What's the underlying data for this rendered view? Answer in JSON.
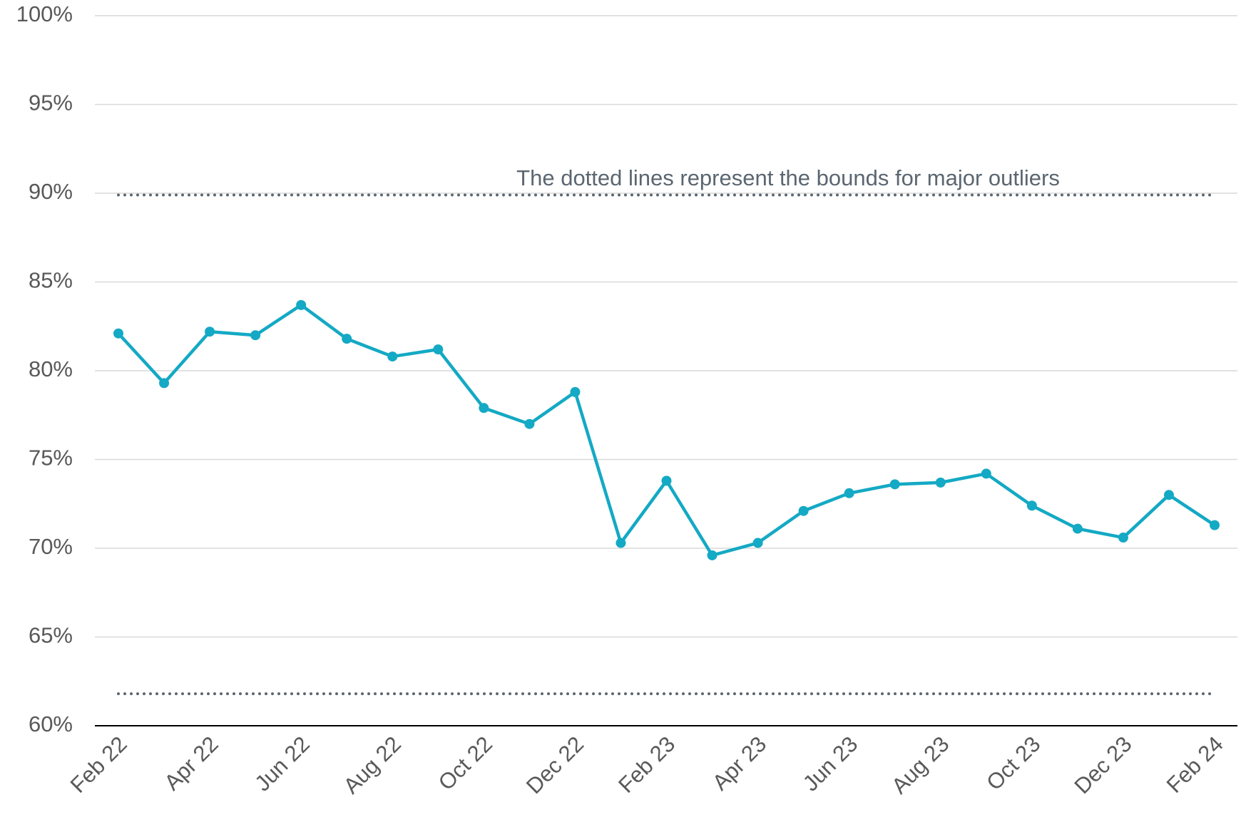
{
  "chart_data": {
    "type": "line",
    "annotation": "The dotted lines represent the bounds for major outliers",
    "categories": [
      "Feb 22",
      null,
      "Apr 22",
      null,
      "Jun 22",
      null,
      "Aug 22",
      null,
      "Oct 22",
      null,
      "Dec 22",
      null,
      "Feb 23",
      null,
      "Apr 23",
      null,
      "Jun 23",
      null,
      "Aug 23",
      null,
      "Oct 23",
      null,
      "Dec 23",
      null,
      "Feb 24"
    ],
    "series": [
      {
        "color": "#14a9c4",
        "values": [
          82.1,
          79.3,
          82.2,
          82.0,
          83.7,
          81.8,
          80.8,
          81.2,
          77.9,
          77.0,
          78.8,
          70.3,
          73.8,
          69.6,
          70.3,
          72.1,
          73.1,
          73.6,
          73.7,
          74.2,
          72.4,
          71.1,
          70.6,
          73.0,
          71.3
        ]
      }
    ],
    "bounds": {
      "color": "#5b6670",
      "upper": 89.9,
      "lower": 61.8
    },
    "ylim": [
      60,
      100
    ],
    "yticks": [
      {
        "value": 60,
        "label": "60%"
      },
      {
        "value": 65,
        "label": "65%"
      },
      {
        "value": 70,
        "label": "70%"
      },
      {
        "value": 75,
        "label": "75%"
      },
      {
        "value": 80,
        "label": "80%"
      },
      {
        "value": 85,
        "label": "85%"
      },
      {
        "value": 90,
        "label": "90%"
      },
      {
        "value": 95,
        "label": "95%"
      },
      {
        "value": 100,
        "label": "100%"
      }
    ],
    "grid": true
  }
}
